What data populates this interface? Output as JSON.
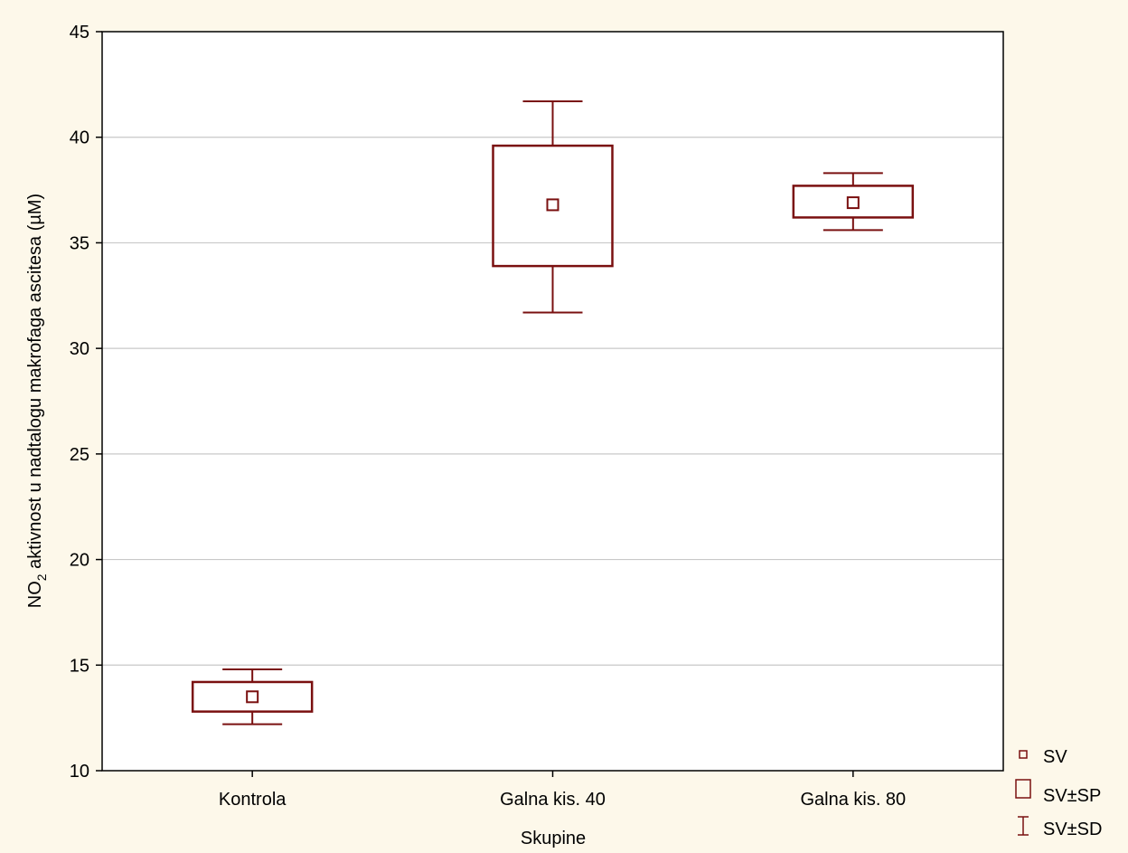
{
  "chart_data": {
    "type": "box",
    "categories": [
      "Kontrola",
      "Galna kis. 40",
      "Galna kis. 80"
    ],
    "series": [
      {
        "name": "SV",
        "values": [
          13.5,
          36.8,
          36.9
        ]
      },
      {
        "name": "SV±SP",
        "low": [
          12.8,
          33.9,
          36.2
        ],
        "high": [
          14.2,
          39.6,
          37.7
        ]
      },
      {
        "name": "SV±SD",
        "low": [
          12.2,
          31.7,
          35.6
        ],
        "high": [
          14.8,
          41.7,
          38.3
        ]
      }
    ],
    "xlabel": "Skupine",
    "ylabel_main": "NO",
    "ylabel_sub": "2",
    "ylabel_rest": " aktivnost u nadtalogu makrofaga ascitesa (µM)",
    "ylim": [
      10,
      45
    ],
    "yticks": [
      "10",
      "15",
      "20",
      "25",
      "30",
      "35",
      "40",
      "45"
    ],
    "grid": true,
    "legend_position": "bottom-right",
    "legend": [
      "SV",
      "SV±SP",
      "SV±SD"
    ],
    "colors": {
      "series": "#7a1010",
      "grid": "#c8c8c8",
      "background": "#fdf8ea",
      "plot_background": "#ffffff"
    }
  }
}
